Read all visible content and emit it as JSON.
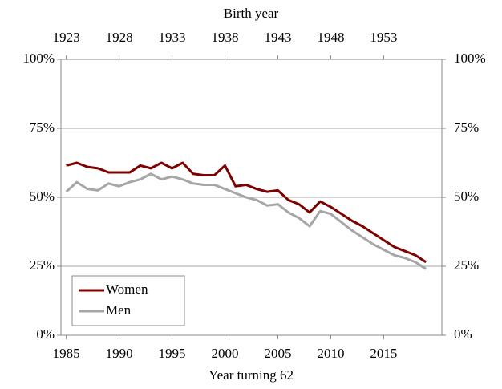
{
  "chart_data": {
    "type": "line",
    "title": "Birth year",
    "x_label": "Year turning 62",
    "x": [
      1985,
      1986,
      1987,
      1988,
      1989,
      1990,
      1991,
      1992,
      1993,
      1994,
      1995,
      1996,
      1997,
      1998,
      1999,
      2000,
      2001,
      2002,
      2003,
      2004,
      2005,
      2006,
      2007,
      2008,
      2009,
      2010,
      2011,
      2012,
      2013,
      2014,
      2015,
      2016,
      2017,
      2018,
      2019
    ],
    "series": [
      {
        "name": "Women",
        "color": "#7f0000",
        "values": [
          61.5,
          62.5,
          61,
          60.5,
          59,
          59,
          59,
          61.5,
          60.5,
          62.5,
          60.5,
          62.5,
          58.5,
          58,
          58,
          61.5,
          54,
          54.5,
          53,
          52,
          52.5,
          49,
          47.5,
          44.5,
          48.5,
          46.5,
          44,
          41.5,
          39.5,
          37,
          34.5,
          32,
          30.5,
          29,
          26.5
        ]
      },
      {
        "name": "Men",
        "color": "#a6a6a6",
        "values": [
          52,
          55.5,
          53,
          52.5,
          55,
          54,
          55.5,
          56.5,
          58.5,
          56.5,
          57.5,
          56.5,
          55,
          54.5,
          54.5,
          53,
          51.5,
          50,
          49,
          47,
          47.5,
          44.5,
          42.5,
          39.5,
          45,
          44,
          41,
          38,
          35.5,
          33,
          31,
          29,
          28,
          26.5,
          24
        ]
      }
    ],
    "xlim": [
      1984.5,
      2020.5
    ],
    "xticks": [
      1985,
      1990,
      1995,
      2000,
      2005,
      2010,
      2015
    ],
    "x2lim": [
      1922.5,
      1958.5
    ],
    "x2ticks": [
      1923,
      1928,
      1933,
      1938,
      1943,
      1948,
      1953
    ],
    "ylim": [
      0,
      100
    ],
    "yticks": [
      {
        "value": 0,
        "label": "0%"
      },
      {
        "value": 25,
        "label": "25%"
      },
      {
        "value": 50,
        "label": "50%"
      },
      {
        "value": 75,
        "label": "75%"
      },
      {
        "value": 100,
        "label": "100%"
      }
    ],
    "y2lim": [
      0,
      100
    ],
    "y2ticks": [
      {
        "value": 0,
        "label": "0%"
      },
      {
        "value": 25,
        "label": "25%"
      },
      {
        "value": 50,
        "label": "50%"
      },
      {
        "value": 75,
        "label": "75%"
      },
      {
        "value": 100,
        "label": "100%"
      }
    ],
    "grid": true,
    "legend": "lower left"
  }
}
